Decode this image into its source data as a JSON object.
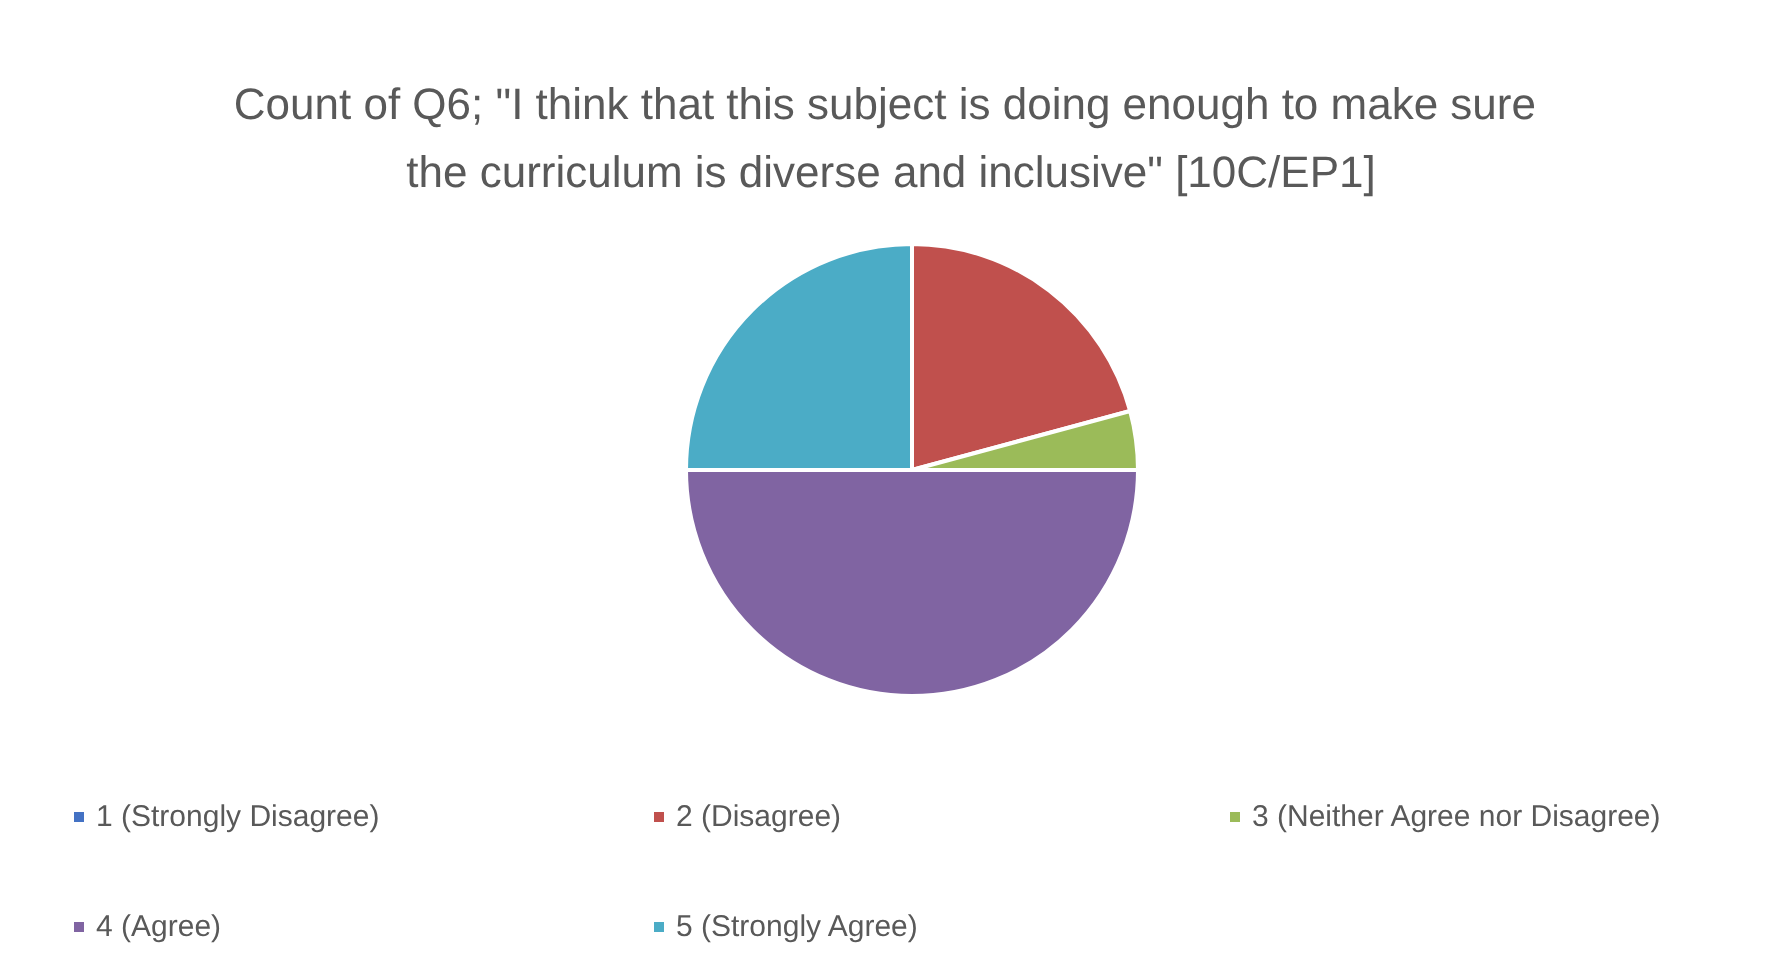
{
  "chart_data": {
    "type": "pie",
    "title": "Count of Q6; \"I think that this subject is doing enough to make sure the curriculum is diverse and inclusive\" [10C/EP1]",
    "categories": [
      "1 (Strongly Disagree)",
      "2 (Disagree)",
      "3 (Neither Agree nor Disagree)",
      "4 (Agree)",
      "5 (Strongly Agree)"
    ],
    "values": [
      0,
      20.8,
      4.2,
      50,
      25
    ],
    "colors": [
      "#4472c4",
      "#c0504d",
      "#9bbb59",
      "#8064a2",
      "#4bacc6"
    ],
    "legend": "bottom"
  }
}
